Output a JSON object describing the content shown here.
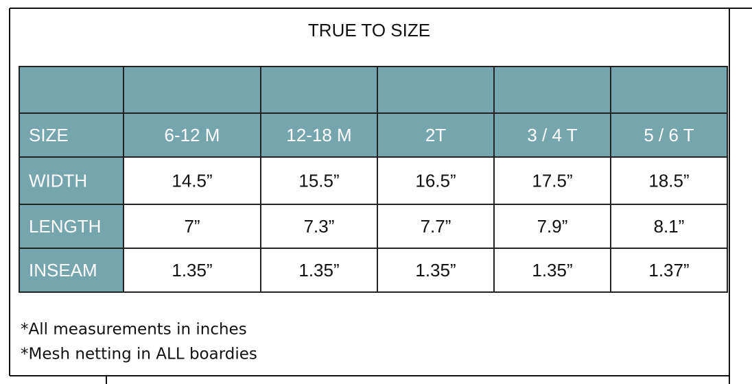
{
  "header": {
    "title": "TRUE TO SIZE"
  },
  "table": {
    "header": [
      "SIZE",
      "6-12 M",
      "12-18 M",
      "2T",
      "3 / 4  T",
      "5 / 6 T"
    ],
    "rows": [
      [
        "WIDTH",
        "14.5”",
        "15.5”",
        "16.5”",
        "17.5”",
        "18.5”"
      ],
      [
        "LENGTH",
        "7”",
        "7.3”",
        "7.7”",
        "7.9”",
        "8.1”"
      ],
      [
        "INSEAM",
        "1.35”",
        "1.35”",
        "1.35”",
        "1.35”",
        "1.37”"
      ]
    ]
  },
  "notes": [
    "*All measurements in inches",
    "*Mesh netting in ALL boardies"
  ]
}
